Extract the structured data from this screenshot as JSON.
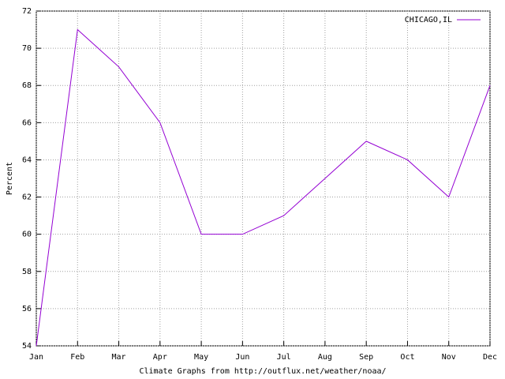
{
  "chart_data": {
    "type": "line",
    "y_label": "Percent",
    "x_label": "Climate Graphs from http://outflux.net/weather/noaa/",
    "categories": [
      "Jan",
      "Feb",
      "Mar",
      "Apr",
      "May",
      "Jun",
      "Jul",
      "Aug",
      "Sep",
      "Oct",
      "Nov",
      "Dec"
    ],
    "series": [
      {
        "name": "CHICAGO,IL",
        "color": "#9400d3",
        "values": [
          54,
          71,
          69,
          66,
          60,
          60,
          61,
          63,
          65,
          64,
          62,
          68
        ]
      }
    ],
    "ylim": [
      54,
      72
    ],
    "yticks": [
      54,
      56,
      58,
      60,
      62,
      64,
      66,
      68,
      70,
      72
    ],
    "grid": true,
    "legend": "top-right"
  }
}
